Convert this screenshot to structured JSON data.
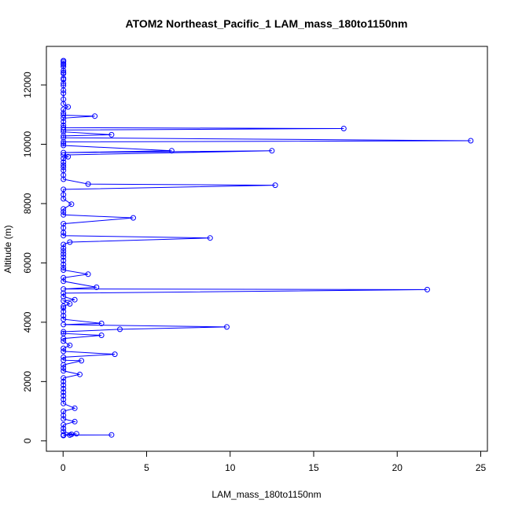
{
  "chart_data": {
    "type": "line",
    "title": "ATOM2 Northeast_Pacific_1 LAM_mass_180to1150nm",
    "xlabel": "LAM_mass_180to1150nm",
    "ylabel": "Altitude (m)",
    "xlim": [
      -1.0,
      25.4
    ],
    "ylim": [
      -350,
      13300
    ],
    "xticks": [
      0,
      5,
      10,
      15,
      20,
      25
    ],
    "yticks": [
      0,
      2000,
      4000,
      6000,
      8000,
      10000,
      12000
    ],
    "grid": false,
    "legend": "none",
    "series_color": "#0000ff",
    "marker": "open-circle",
    "series": [
      {
        "points": [
          [
            0.02,
            12820
          ],
          [
            0.02,
            12780
          ],
          [
            0.02,
            12720
          ],
          [
            0.02,
            12680
          ],
          [
            0.02,
            12620
          ],
          [
            0.02,
            12480
          ],
          [
            0.02,
            12420
          ],
          [
            0.02,
            12380
          ],
          [
            0.02,
            12220
          ],
          [
            0.02,
            12180
          ],
          [
            0.02,
            12050
          ],
          [
            0.02,
            11980
          ],
          [
            0.02,
            11820
          ],
          [
            0.02,
            11720
          ],
          [
            0.02,
            11520
          ],
          [
            0.02,
            11360
          ],
          [
            0.3,
            11260
          ],
          [
            0.02,
            11180
          ],
          [
            0.02,
            11050
          ],
          [
            0.02,
            10980
          ],
          [
            1.9,
            10950
          ],
          [
            0.02,
            10880
          ],
          [
            0.02,
            10760
          ],
          [
            0.02,
            10640
          ],
          [
            0.02,
            10560
          ],
          [
            16.8,
            10530
          ],
          [
            0.02,
            10480
          ],
          [
            0.02,
            10420
          ],
          [
            2.9,
            10320
          ],
          [
            0.02,
            10280
          ],
          [
            0.02,
            10220
          ],
          [
            24.4,
            10120
          ],
          [
            0.02,
            10080
          ],
          [
            0.02,
            10020
          ],
          [
            0.02,
            9960
          ],
          [
            6.5,
            9780
          ],
          [
            0.02,
            9720
          ],
          [
            12.5,
            9780
          ],
          [
            0.02,
            9640
          ],
          [
            0.3,
            9580
          ],
          [
            0.02,
            9520
          ],
          [
            0.02,
            9400
          ],
          [
            0.02,
            9300
          ],
          [
            0.02,
            9220
          ],
          [
            0.02,
            9120
          ],
          [
            0.02,
            8960
          ],
          [
            0.02,
            8820
          ],
          [
            1.5,
            8660
          ],
          [
            12.7,
            8620
          ],
          [
            0.02,
            8480
          ],
          [
            0.02,
            8300
          ],
          [
            0.02,
            8160
          ],
          [
            0.5,
            7980
          ],
          [
            0.02,
            7820
          ],
          [
            0.02,
            7720
          ],
          [
            0.02,
            7620
          ],
          [
            4.2,
            7520
          ],
          [
            0.02,
            7320
          ],
          [
            0.02,
            7180
          ],
          [
            0.02,
            7020
          ],
          [
            0.02,
            6920
          ],
          [
            8.8,
            6840
          ],
          [
            0.4,
            6700
          ],
          [
            0.02,
            6620
          ],
          [
            0.02,
            6500
          ],
          [
            0.02,
            6400
          ],
          [
            0.02,
            6300
          ],
          [
            0.02,
            6200
          ],
          [
            0.02,
            6080
          ],
          [
            0.02,
            5950
          ],
          [
            0.02,
            5840
          ],
          [
            0.02,
            5760
          ],
          [
            1.5,
            5620
          ],
          [
            0.02,
            5500
          ],
          [
            0.02,
            5380
          ],
          [
            2.0,
            5180
          ],
          [
            0.02,
            5120
          ],
          [
            21.8,
            5100
          ],
          [
            0.02,
            4980
          ],
          [
            0.02,
            4860
          ],
          [
            0.7,
            4760
          ],
          [
            0.02,
            4720
          ],
          [
            0.4,
            4620
          ],
          [
            0.02,
            4540
          ],
          [
            0.02,
            4480
          ],
          [
            0.02,
            4360
          ],
          [
            0.02,
            4220
          ],
          [
            0.02,
            4100
          ],
          [
            2.3,
            3960
          ],
          [
            0.02,
            3920
          ],
          [
            9.8,
            3840
          ],
          [
            3.4,
            3760
          ],
          [
            0.02,
            3680
          ],
          [
            0.02,
            3620
          ],
          [
            2.3,
            3560
          ],
          [
            0.02,
            3450
          ],
          [
            0.02,
            3360
          ],
          [
            0.4,
            3220
          ],
          [
            0.02,
            3120
          ],
          [
            0.02,
            3020
          ],
          [
            3.1,
            2920
          ],
          [
            0.02,
            2820
          ],
          [
            0.02,
            2720
          ],
          [
            1.1,
            2700
          ],
          [
            0.02,
            2560
          ],
          [
            0.02,
            2460
          ],
          [
            0.02,
            2360
          ],
          [
            1.0,
            2240
          ],
          [
            0.02,
            2120
          ],
          [
            0.02,
            2000
          ],
          [
            0.02,
            1880
          ],
          [
            0.02,
            1760
          ],
          [
            0.02,
            1640
          ],
          [
            0.02,
            1520
          ],
          [
            0.02,
            1400
          ],
          [
            0.02,
            1260
          ],
          [
            0.7,
            1100
          ],
          [
            0.02,
            1000
          ],
          [
            0.02,
            860
          ],
          [
            0.02,
            740
          ],
          [
            0.7,
            650
          ],
          [
            0.02,
            540
          ],
          [
            0.02,
            420
          ],
          [
            0.02,
            320
          ],
          [
            0.5,
            220
          ],
          [
            0.8,
            240
          ],
          [
            0.02,
            200
          ],
          [
            2.9,
            200
          ],
          [
            0.4,
            195
          ],
          [
            0.02,
            180
          ]
        ]
      }
    ]
  }
}
